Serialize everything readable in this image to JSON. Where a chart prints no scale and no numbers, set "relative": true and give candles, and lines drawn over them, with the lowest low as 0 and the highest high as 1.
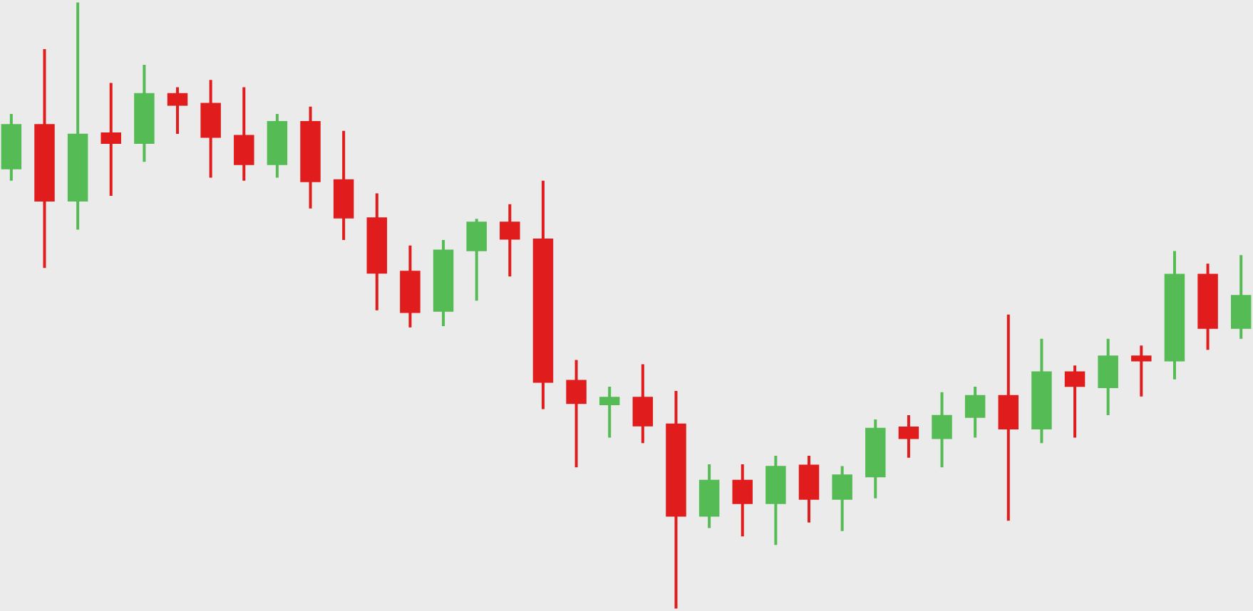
{
  "chart_data": {
    "type": "candlestick",
    "relative": true,
    "categories": [
      null,
      null,
      null,
      null,
      null,
      null,
      null,
      null,
      null,
      null,
      null,
      null,
      null,
      null,
      null,
      null,
      null,
      null,
      null,
      null,
      null,
      null,
      null,
      null,
      null,
      null,
      null,
      null,
      null,
      null,
      null,
      null,
      null,
      null,
      null,
      null,
      null,
      null
    ],
    "ohlc": [
      [
        0.727,
        0.816,
        0.706,
        0.797
      ],
      [
        0.797,
        0.923,
        0.562,
        0.674
      ],
      [
        0.674,
        1,
        0.625,
        0.781
      ],
      [
        0.783,
        0.867,
        0.681,
        0.769
      ],
      [
        0.769,
        0.897,
        0.737,
        0.848
      ],
      [
        0.848,
        0.86,
        0.783,
        0.832
      ],
      [
        0.832,
        0.872,
        0.711,
        0.779
      ],
      [
        0.779,
        0.86,
        0.706,
        0.734
      ],
      [
        0.734,
        0.816,
        0.711,
        0.802
      ],
      [
        0.802,
        0.828,
        0.66,
        0.706
      ],
      [
        0.706,
        0.788,
        0.608,
        0.646
      ],
      [
        0.643,
        0.685,
        0.492,
        0.555
      ],
      [
        0.555,
        0.599,
        0.464,
        0.49
      ],
      [
        0.492,
        0.608,
        0.466,
        0.59
      ],
      [
        0.592,
        0.643,
        0.508,
        0.636
      ],
      [
        0.636,
        0.667,
        0.548,
        0.611
      ],
      [
        0.608,
        0.706,
        0.329,
        0.375
      ],
      [
        0.375,
        0.41,
        0.233,
        0.34
      ],
      [
        0.338,
        0.366,
        0.282,
        0.347
      ],
      [
        0.347,
        0.403,
        0.273,
        0.303
      ],
      [
        0.303,
        0.359,
        0,
        0.154
      ],
      [
        0.154,
        0.238,
        0.133,
        0.21
      ],
      [
        0.21,
        0.238,
        0.119,
        0.175
      ],
      [
        0.175,
        0.252,
        0.105,
        0.233
      ],
      [
        0.235,
        0.252,
        0.142,
        0.182
      ],
      [
        0.182,
        0.235,
        0.128,
        0.219
      ],
      [
        0.219,
        0.312,
        0.182,
        0.296
      ],
      [
        0.298,
        0.319,
        0.249,
        0.282
      ],
      [
        0.282,
        0.357,
        0.233,
        0.317
      ],
      [
        0.317,
        0.366,
        0.282,
        0.35
      ],
      [
        0.35,
        0.485,
        0.145,
        0.298
      ],
      [
        0.298,
        0.445,
        0.273,
        0.389
      ],
      [
        0.389,
        0.401,
        0.282,
        0.368
      ],
      [
        0.366,
        0.445,
        0.319,
        0.415
      ],
      [
        0.415,
        0.434,
        0.35,
        0.41
      ],
      [
        0.41,
        0.59,
        0.378,
        0.55
      ],
      [
        0.55,
        0.569,
        0.427,
        0.464
      ],
      [
        0.464,
        0.583,
        0.445,
        0.515
      ]
    ],
    "colors": [
      "#55bb55",
      "#e01c1c",
      "#55bb55",
      "#e01c1c",
      "#55bb55",
      "#e01c1c",
      "#e01c1c",
      "#e01c1c",
      "#55bb55",
      "#e01c1c",
      "#e01c1c",
      "#e01c1c",
      "#e01c1c",
      "#55bb55",
      "#55bb55",
      "#e01c1c",
      "#e01c1c",
      "#e01c1c",
      "#55bb55",
      "#e01c1c",
      "#e01c1c",
      "#55bb55",
      "#e01c1c",
      "#55bb55",
      "#e01c1c",
      "#55bb55",
      "#55bb55",
      "#e01c1c",
      "#55bb55",
      "#55bb55",
      "#e01c1c",
      "#55bb55",
      "#e01c1c",
      "#55bb55",
      "#e01c1c",
      "#55bb55",
      "#e01c1c",
      "#55bb55"
    ]
  }
}
